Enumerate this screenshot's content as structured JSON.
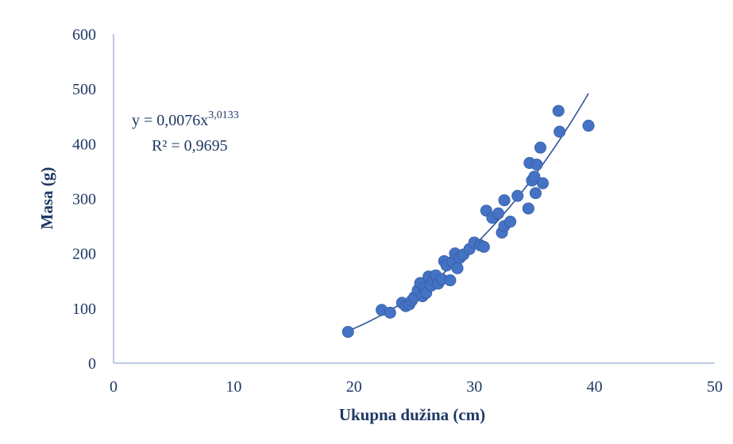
{
  "chart_data": {
    "type": "scatter",
    "title": "",
    "xlabel": "Ukupna dužina (cm)",
    "ylabel": "Masa (g)",
    "xlim": [
      0,
      50
    ],
    "ylim": [
      0,
      600
    ],
    "x_ticks": [
      "0",
      "10",
      "20",
      "30",
      "40",
      "50"
    ],
    "y_ticks": [
      "0",
      "100",
      "200",
      "300",
      "400",
      "500",
      "600"
    ],
    "grid": false,
    "legend": "none",
    "marker_color": "#4472c4",
    "trendline": {
      "type": "power",
      "coefficient": 0.0076,
      "exponent": 3.0133,
      "x_range": [
        19.5,
        39.5
      ],
      "equation_prefix": "y = 0,0076x",
      "equation_exponent": "3,0133",
      "r_squared_label": "R² = 0,9695"
    },
    "series": [
      {
        "points": [
          [
            19.5,
            57
          ],
          [
            22.3,
            97
          ],
          [
            23.0,
            92
          ],
          [
            24.0,
            110
          ],
          [
            24.3,
            104
          ],
          [
            24.6,
            107
          ],
          [
            24.8,
            114
          ],
          [
            25.0,
            120
          ],
          [
            25.3,
            133
          ],
          [
            25.5,
            146
          ],
          [
            25.7,
            122
          ],
          [
            25.9,
            138
          ],
          [
            26.0,
            128
          ],
          [
            26.2,
            158
          ],
          [
            26.4,
            141
          ],
          [
            26.6,
            152
          ],
          [
            26.8,
            160
          ],
          [
            27.0,
            145
          ],
          [
            27.3,
            153
          ],
          [
            27.5,
            186
          ],
          [
            27.7,
            178
          ],
          [
            28.0,
            151
          ],
          [
            28.2,
            185
          ],
          [
            28.4,
            200
          ],
          [
            28.6,
            173
          ],
          [
            28.8,
            192
          ],
          [
            29.1,
            198
          ],
          [
            29.6,
            208
          ],
          [
            30.0,
            220
          ],
          [
            30.5,
            215
          ],
          [
            30.8,
            212
          ],
          [
            31.0,
            278
          ],
          [
            31.5,
            265
          ],
          [
            32.0,
            273
          ],
          [
            32.3,
            238
          ],
          [
            32.5,
            250
          ],
          [
            32.5,
            297
          ],
          [
            33.0,
            258
          ],
          [
            33.6,
            305
          ],
          [
            34.5,
            282
          ],
          [
            34.6,
            365
          ],
          [
            34.8,
            333
          ],
          [
            35.0,
            340
          ],
          [
            35.1,
            310
          ],
          [
            35.2,
            362
          ],
          [
            35.5,
            393
          ],
          [
            35.7,
            328
          ],
          [
            37.0,
            460
          ],
          [
            37.1,
            422
          ],
          [
            39.5,
            433
          ]
        ]
      }
    ]
  }
}
